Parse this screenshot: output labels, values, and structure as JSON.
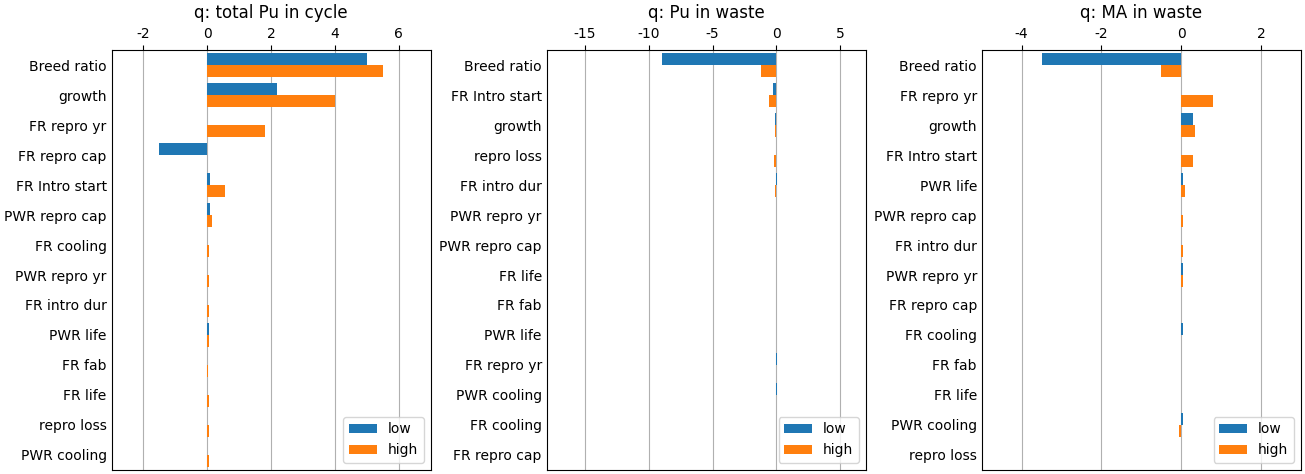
{
  "chart_data": [
    {
      "type": "bar",
      "orientation": "horizontal",
      "title": "q: total Pu in cycle",
      "categories": [
        "Breed ratio",
        "growth",
        "FR repro yr",
        "FR repro cap",
        "FR Intro start",
        "PWR repro cap",
        "FR cooling",
        "PWR repro yr",
        "FR intro dur",
        "PWR life",
        "FR fab",
        "FR life",
        "repro loss",
        "PWR cooling"
      ],
      "series": [
        {
          "name": "low",
          "values": [
            5.0,
            2.2,
            0.0,
            -1.5,
            0.1,
            0.1,
            0.0,
            0.0,
            0.0,
            0.05,
            0.0,
            0.0,
            0.0,
            0.0
          ]
        },
        {
          "name": "high",
          "values": [
            5.5,
            4.0,
            1.8,
            0.0,
            0.55,
            0.15,
            0.07,
            0.07,
            0.07,
            0.05,
            0.02,
            0.05,
            0.05,
            0.05
          ]
        }
      ],
      "xlim": [
        -3,
        7
      ],
      "xticks": [
        -2,
        0,
        2,
        4,
        6
      ],
      "grid": true,
      "legend": "lower right"
    },
    {
      "type": "bar",
      "orientation": "horizontal",
      "title": "q: Pu in waste",
      "categories": [
        "Breed ratio",
        "FR Intro start",
        "growth",
        "repro loss",
        "FR intro dur",
        "PWR repro yr",
        "PWR repro cap",
        "FR life",
        "FR fab",
        "PWR life",
        "FR repro yr",
        "PWR cooling",
        "FR cooling",
        "FR repro cap"
      ],
      "series": [
        {
          "name": "low",
          "values": [
            -9.0,
            -0.3,
            -0.1,
            0.0,
            0.05,
            0.0,
            0.0,
            0.0,
            0.0,
            0.0,
            0.05,
            0.05,
            0.0,
            0.0
          ]
        },
        {
          "name": "high",
          "values": [
            -1.2,
            -0.6,
            -0.1,
            -0.15,
            -0.1,
            -0.05,
            0.0,
            -0.05,
            0.0,
            0.0,
            -0.05,
            -0.05,
            -0.05,
            0.0
          ]
        }
      ],
      "xlim": [
        -18,
        7
      ],
      "xticks": [
        -15,
        -10,
        -5,
        0,
        5
      ],
      "grid": true,
      "legend": "lower right"
    },
    {
      "type": "bar",
      "orientation": "horizontal",
      "title": "q: MA in waste",
      "categories": [
        "Breed ratio",
        "FR repro yr",
        "growth",
        "FR Intro start",
        "PWR life",
        "PWR repro cap",
        "FR intro dur",
        "PWR repro yr",
        "FR repro cap",
        "FR cooling",
        "FR fab",
        "FR life",
        "PWR cooling",
        "repro loss"
      ],
      "series": [
        {
          "name": "low",
          "values": [
            -3.5,
            0.0,
            0.3,
            0.0,
            0.05,
            0.0,
            0.0,
            0.05,
            0.0,
            0.05,
            0.0,
            0.0,
            0.05,
            0.0
          ]
        },
        {
          "name": "high",
          "values": [
            -0.5,
            0.8,
            0.35,
            0.3,
            0.1,
            0.05,
            0.05,
            0.05,
            0.0,
            0.0,
            0.0,
            0.0,
            -0.05,
            0.0
          ]
        }
      ],
      "xlim": [
        -5,
        3
      ],
      "xticks": [
        -4,
        -2,
        0,
        2
      ],
      "grid": true,
      "legend": "lower right"
    }
  ]
}
